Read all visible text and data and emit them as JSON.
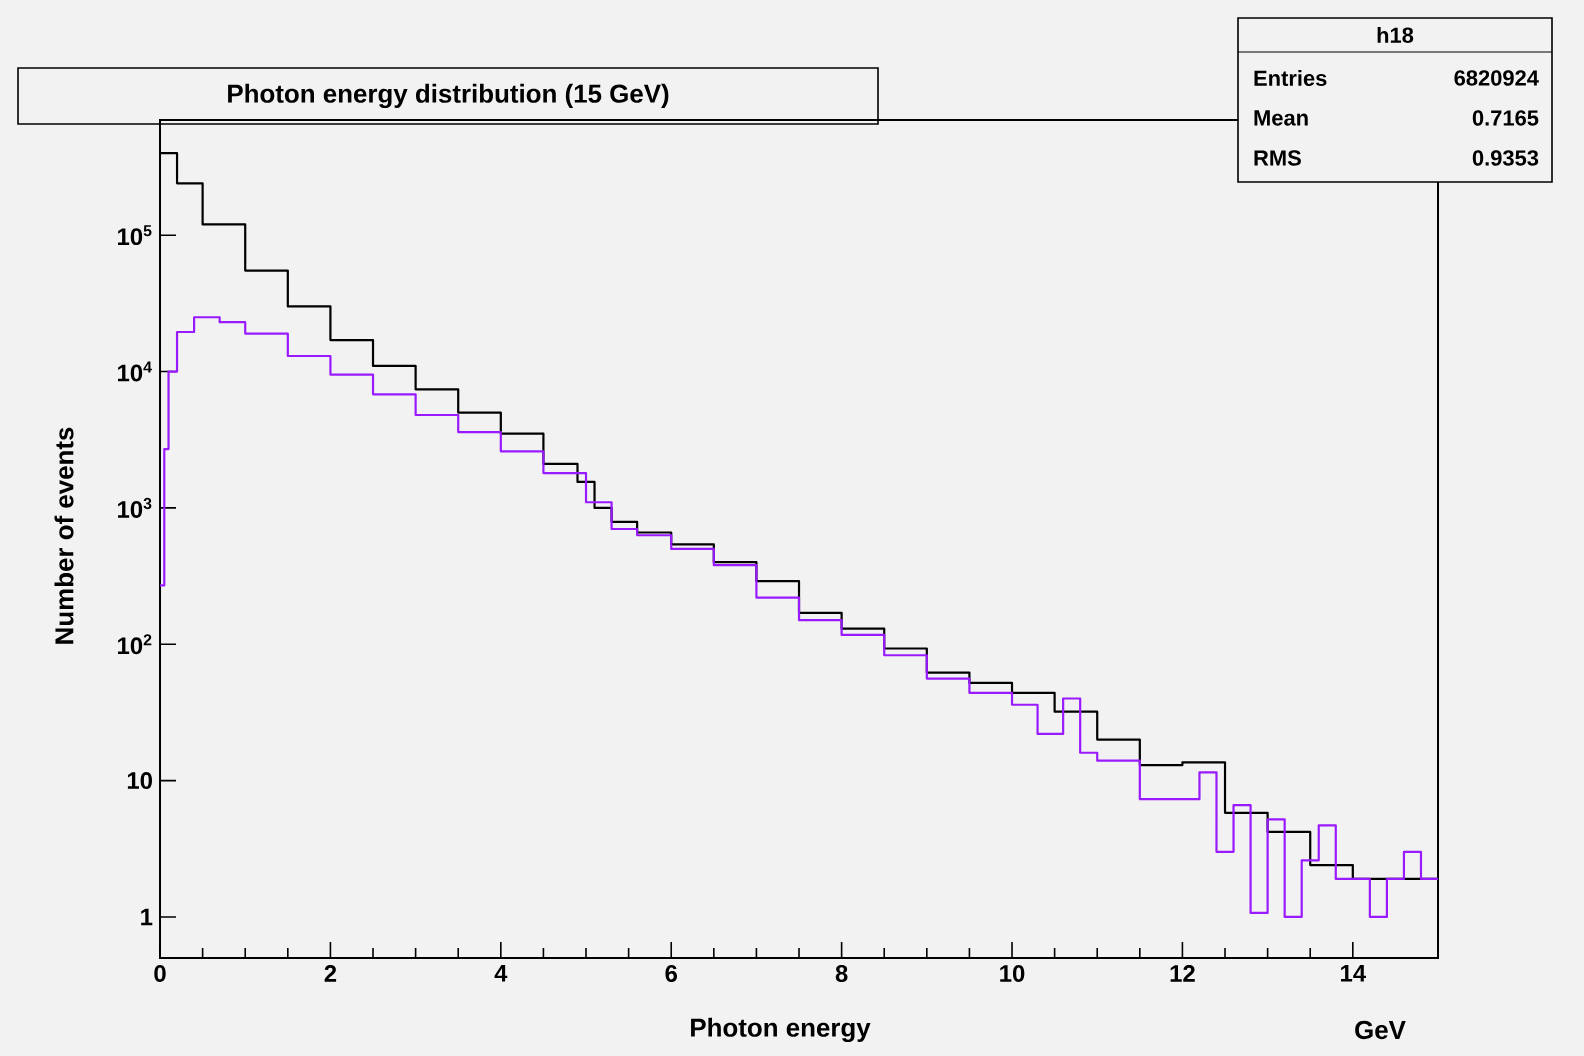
{
  "chart_data": {
    "type": "step",
    "title": "Photon energy distribution (15 GeV)",
    "xlabel": "Photon energy",
    "ylabel": "Number of events",
    "annotations": [
      "GeV",
      "h18",
      "Entries",
      "6820924",
      "Mean",
      "0.7165",
      "RMS",
      "0.9353"
    ],
    "log": "y",
    "xlim": [
      0,
      15
    ],
    "ylim": [
      0.5,
      700000
    ],
    "xticks": [
      0,
      2,
      4,
      6,
      8,
      10,
      12,
      14
    ],
    "yticks": [
      {
        "value": 1,
        "label": "1"
      },
      {
        "value": 10,
        "label": "10"
      },
      {
        "value": 100,
        "label": "10$^{2}$"
      },
      {
        "value": 1000,
        "label": "10$^{3}$"
      },
      {
        "value": 10000,
        "label": "10$^{4}$"
      },
      {
        "value": 100000,
        "label": "10$^{5}$"
      }
    ],
    "series": [
      {
        "color": "#000000",
        "x": [
          0,
          0.05,
          0.2,
          0.5,
          1,
          1.5,
          2,
          2.5,
          3,
          3.5,
          4,
          4.5,
          4.9,
          5.1,
          5.3,
          5.6,
          6,
          6.5,
          7,
          7.5,
          8,
          8.5,
          9,
          9.5,
          10,
          10.5,
          11,
          11.5,
          12,
          12.5,
          13,
          13.5,
          14,
          14.5,
          15
        ],
        "values": [
          400000,
          400000,
          240000,
          120000,
          55000,
          30000,
          17000,
          11000,
          7400,
          5000,
          3500,
          2100,
          1550,
          1000,
          790,
          660,
          540,
          400,
          290,
          170,
          130,
          93,
          62,
          52,
          44,
          32,
          20,
          13,
          13.6,
          5.8,
          4.2,
          2.4,
          1.9,
          null,
          1.9
        ]
      },
      {
        "color": "#9a1aff",
        "x": [
          0,
          0.05,
          0.1,
          0.2,
          0.4,
          0.7,
          1,
          1.5,
          2,
          2.5,
          3,
          3.5,
          4,
          4.5,
          5,
          5.3,
          5.6,
          6,
          6.5,
          7,
          7.5,
          8,
          8.5,
          9,
          9.5,
          10,
          10.3,
          10.6,
          10.8,
          11,
          11.5,
          12,
          12.2,
          12.4,
          12.6,
          12.8,
          13,
          13.2,
          13.4,
          13.6,
          13.8,
          14,
          14.2,
          14.4,
          14.6,
          14.8,
          15
        ],
        "values": [
          270,
          2700,
          10000,
          19500,
          25000,
          23000,
          19000,
          13000,
          9500,
          6800,
          4800,
          3600,
          2600,
          1800,
          1100,
          700,
          630,
          500,
          380,
          220,
          150,
          117,
          83,
          56,
          44,
          36,
          22,
          40,
          16,
          14,
          7.3,
          7.3,
          11.5,
          3,
          6.6,
          1.07,
          5.2,
          1,
          2.6,
          4.7,
          1.9,
          1.9,
          1,
          1.9,
          3,
          1.9,
          1.9
        ]
      }
    ]
  }
}
